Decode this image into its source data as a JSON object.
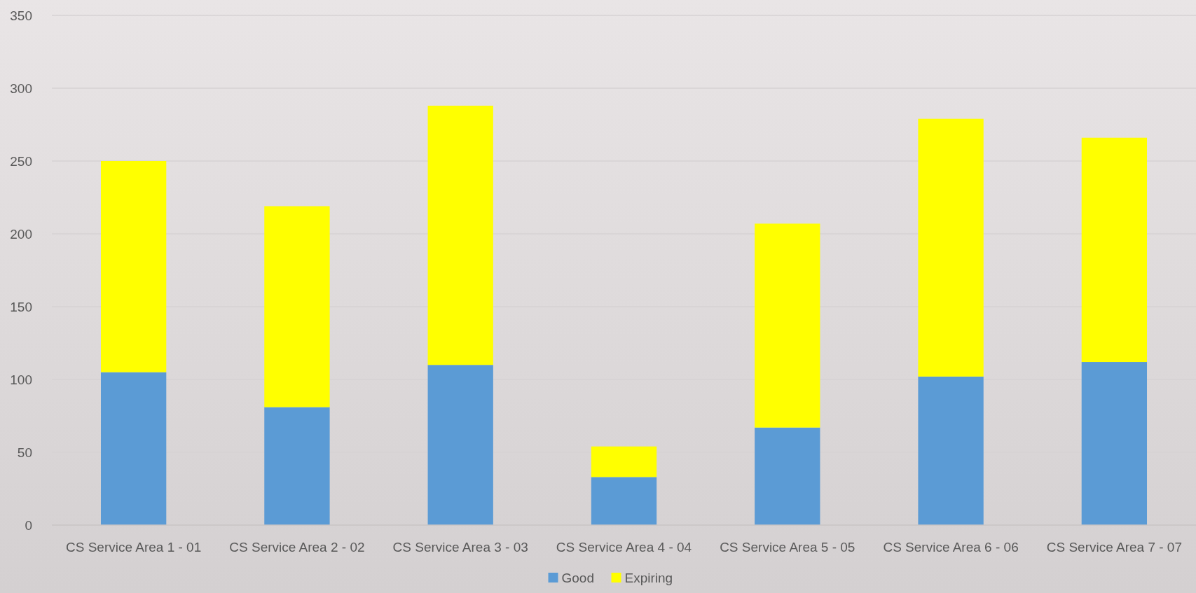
{
  "chart_data": {
    "type": "bar",
    "stacked": true,
    "categories": [
      "CS Service Area 1 - 01",
      "CS Service Area 2 - 02",
      "CS Service Area 3 - 03",
      "CS Service Area 4 - 04",
      "CS Service Area 5 - 05",
      "CS Service Area 6 - 06",
      "CS Service Area 7 - 07"
    ],
    "series": [
      {
        "name": "Good",
        "color": "#5b9bd5",
        "values": [
          105,
          81,
          110,
          33,
          67,
          102,
          112
        ]
      },
      {
        "name": "Expiring",
        "color": "#ffff00",
        "values": [
          145,
          138,
          178,
          21,
          140,
          177,
          154
        ]
      }
    ],
    "ylim": [
      0,
      350
    ],
    "yticks": [
      0,
      50,
      100,
      150,
      200,
      250,
      300,
      350
    ],
    "grid": "y",
    "legend": "bottom"
  }
}
